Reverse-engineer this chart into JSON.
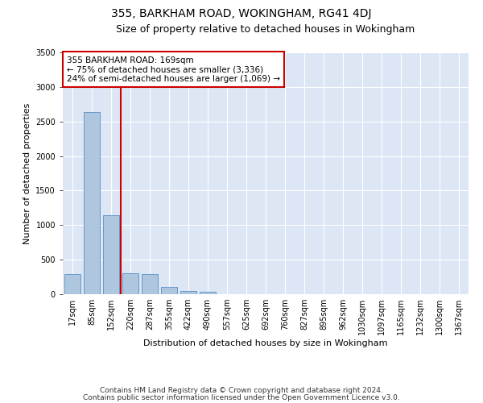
{
  "title1": "355, BARKHAM ROAD, WOKINGHAM, RG41 4DJ",
  "title2": "Size of property relative to detached houses in Wokingham",
  "xlabel": "Distribution of detached houses by size in Wokingham",
  "ylabel": "Number of detached properties",
  "bar_labels": [
    "17sqm",
    "85sqm",
    "152sqm",
    "220sqm",
    "287sqm",
    "355sqm",
    "422sqm",
    "490sqm",
    "557sqm",
    "625sqm",
    "692sqm",
    "760sqm",
    "827sqm",
    "895sqm",
    "962sqm",
    "1030sqm",
    "1097sqm",
    "1165sqm",
    "1232sqm",
    "1300sqm",
    "1367sqm"
  ],
  "bar_values": [
    295,
    2640,
    1140,
    300,
    295,
    100,
    50,
    30,
    0,
    0,
    0,
    0,
    0,
    0,
    0,
    0,
    0,
    0,
    0,
    0,
    0
  ],
  "bar_color": "#aec6de",
  "bar_edge_color": "#6699cc",
  "vline_color": "#cc0000",
  "annotation_text": "355 BARKHAM ROAD: 169sqm\n← 75% of detached houses are smaller (3,336)\n24% of semi-detached houses are larger (1,069) →",
  "annotation_box_color": "#ffffff",
  "annotation_box_edge": "#cc0000",
  "ylim": [
    0,
    3500
  ],
  "yticks": [
    0,
    500,
    1000,
    1500,
    2000,
    2500,
    3000,
    3500
  ],
  "background_color": "#dce6f5",
  "footer1": "Contains HM Land Registry data © Crown copyright and database right 2024.",
  "footer2": "Contains public sector information licensed under the Open Government Licence v3.0.",
  "title1_fontsize": 10,
  "title2_fontsize": 9,
  "axis_label_fontsize": 8,
  "tick_fontsize": 7,
  "annotation_fontsize": 7.5,
  "footer_fontsize": 6.5
}
